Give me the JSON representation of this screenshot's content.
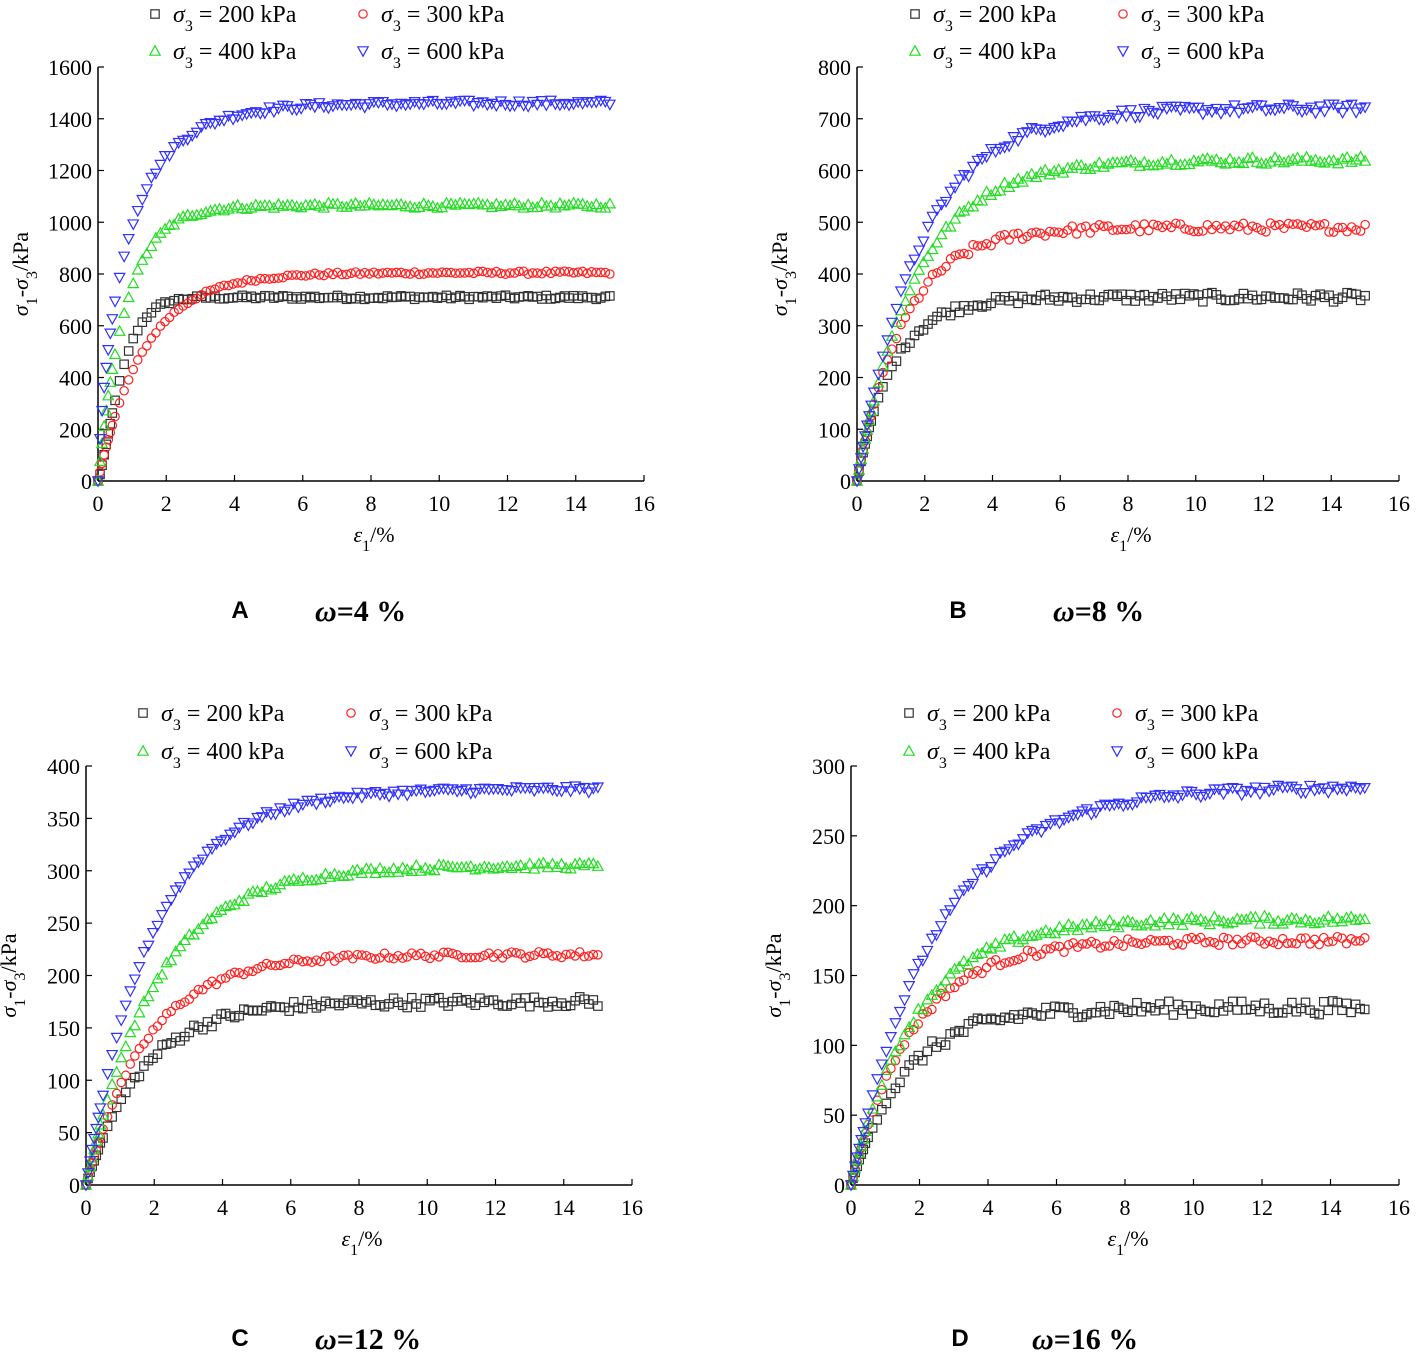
{
  "figure": {
    "panels": [
      "A",
      "B",
      "C",
      "D"
    ]
  },
  "chart_data": [
    {
      "type": "scatter",
      "panel_label": "A",
      "title": "ω=4 %",
      "omega_symbol": "ω",
      "omega_value": "=4 %",
      "xlabel": "ε1/%",
      "ylabel": "σ1-σ3/kPa",
      "xlim": [
        0,
        16
      ],
      "ylim": [
        0,
        1600
      ],
      "xticks": [
        0,
        2,
        4,
        6,
        8,
        10,
        12,
        14,
        16
      ],
      "yticks": [
        0,
        200,
        400,
        600,
        800,
        1000,
        1200,
        1400,
        1600
      ],
      "legend": [
        "σ3 = 200 kPa",
        "σ3 = 300 kPa",
        "σ3 = 400 kPa",
        "σ3 = 600 kPa"
      ],
      "series": [
        {
          "name": "σ3 = 200 kPa",
          "color": "#333333",
          "marker": "square",
          "peak": 710,
          "k": 0.55,
          "shape": 1.3,
          "noise": 8
        },
        {
          "name": "σ3 = 300 kPa",
          "color": "#ff2020",
          "marker": "circle",
          "peak": 805,
          "k": 0.33,
          "shape": 1.0,
          "noise": 6
        },
        {
          "name": "σ3 = 400 kPa",
          "color": "#22dd22",
          "marker": "triangle-up",
          "peak": 1065,
          "k": 0.55,
          "shape": 1.0,
          "noise": 10
        },
        {
          "name": "σ3 = 600 kPa",
          "color": "#3030ff",
          "marker": "triangle-down",
          "peak": 1460,
          "k": 0.55,
          "shape": 0.8,
          "noise": 12
        }
      ]
    },
    {
      "type": "scatter",
      "panel_label": "B",
      "title": "ω=8 %",
      "omega_symbol": "ω",
      "omega_value": "=8 %",
      "xlabel": "ε1/%",
      "ylabel": "σ1-σ3/kPa",
      "xlim": [
        0,
        16
      ],
      "ylim": [
        0,
        800
      ],
      "xticks": [
        0,
        2,
        4,
        6,
        8,
        10,
        12,
        14,
        16
      ],
      "yticks": [
        0,
        100,
        200,
        300,
        400,
        500,
        600,
        700,
        800
      ],
      "legend": [
        "σ3 = 200 kPa",
        "σ3 = 300 kPa",
        "σ3 = 400 kPa",
        "σ3 = 600 kPa"
      ],
      "series": [
        {
          "name": "σ3 = 200 kPa",
          "color": "#333333",
          "marker": "square",
          "peak": 355,
          "k": 0.42,
          "shape": 1.0,
          "noise": 9
        },
        {
          "name": "σ3 = 300 kPa",
          "color": "#ff2020",
          "marker": "circle",
          "peak": 490,
          "k": 0.32,
          "shape": 1.0,
          "noise": 9
        },
        {
          "name": "σ3 = 400 kPa",
          "color": "#22dd22",
          "marker": "triangle-up",
          "peak": 620,
          "k": 0.26,
          "shape": 1.0,
          "noise": 7
        },
        {
          "name": "σ3 = 600 kPa",
          "color": "#3030ff",
          "marker": "triangle-down",
          "peak": 720,
          "k": 0.24,
          "shape": 1.0,
          "noise": 9
        }
      ]
    },
    {
      "type": "scatter",
      "panel_label": "C",
      "title": "ω=12 %",
      "omega_symbol": "ω",
      "omega_value": "=12 %",
      "xlabel": "ε1/%",
      "ylabel": "σ1-σ3/kPa",
      "xlim": [
        0,
        16
      ],
      "ylim": [
        0,
        400
      ],
      "xticks": [
        0,
        2,
        4,
        6,
        8,
        10,
        12,
        14,
        16
      ],
      "yticks": [
        0,
        50,
        100,
        150,
        200,
        250,
        300,
        350,
        400
      ],
      "legend": [
        "σ3 = 200 kPa",
        "σ3 = 300 kPa",
        "σ3 = 400 kPa",
        "σ3 = 600 kPa"
      ],
      "series": [
        {
          "name": "σ3 = 200 kPa",
          "color": "#333333",
          "marker": "square",
          "peak": 175,
          "k": 0.27,
          "shape": 1.0,
          "noise": 5
        },
        {
          "name": "σ3 = 300 kPa",
          "color": "#ff2020",
          "marker": "circle",
          "peak": 220,
          "k": 0.25,
          "shape": 1.0,
          "noise": 3
        },
        {
          "name": "σ3 = 400 kPa",
          "color": "#22dd22",
          "marker": "triangle-up",
          "peak": 305,
          "k": 0.22,
          "shape": 1.0,
          "noise": 3
        },
        {
          "name": "σ3 = 600 kPa",
          "color": "#3030ff",
          "marker": "triangle-down",
          "peak": 378,
          "k": 0.23,
          "shape": 1.0,
          "noise": 3
        }
      ]
    },
    {
      "type": "scatter",
      "panel_label": "D",
      "title": "ω=16 %",
      "omega_symbol": "ω",
      "omega_value": "=16 %",
      "xlabel": "ε1/%",
      "ylabel": "σ1-σ3/kPa",
      "xlim": [
        0,
        16
      ],
      "ylim": [
        0,
        300
      ],
      "xticks": [
        0,
        2,
        4,
        6,
        8,
        10,
        12,
        14,
        16
      ],
      "yticks": [
        0,
        50,
        100,
        150,
        200,
        250,
        300
      ],
      "legend": [
        "σ3 = 200 kPa",
        "σ3 = 300 kPa",
        "σ3 = 400 kPa",
        "σ3 = 600 kPa"
      ],
      "series": [
        {
          "name": "σ3 = 200 kPa",
          "color": "#333333",
          "marker": "square",
          "peak": 127,
          "k": 0.28,
          "shape": 1.0,
          "noise": 5
        },
        {
          "name": "σ3 = 300 kPa",
          "color": "#ff2020",
          "marker": "circle",
          "peak": 175,
          "k": 0.25,
          "shape": 1.0,
          "noise": 3
        },
        {
          "name": "σ3 = 400 kPa",
          "color": "#22dd22",
          "marker": "triangle-up",
          "peak": 190,
          "k": 0.24,
          "shape": 1.0,
          "noise": 3
        },
        {
          "name": "σ3 = 600 kPa",
          "color": "#3030ff",
          "marker": "triangle-down",
          "peak": 285,
          "k": 0.18,
          "shape": 1.0,
          "noise": 3
        }
      ]
    }
  ]
}
